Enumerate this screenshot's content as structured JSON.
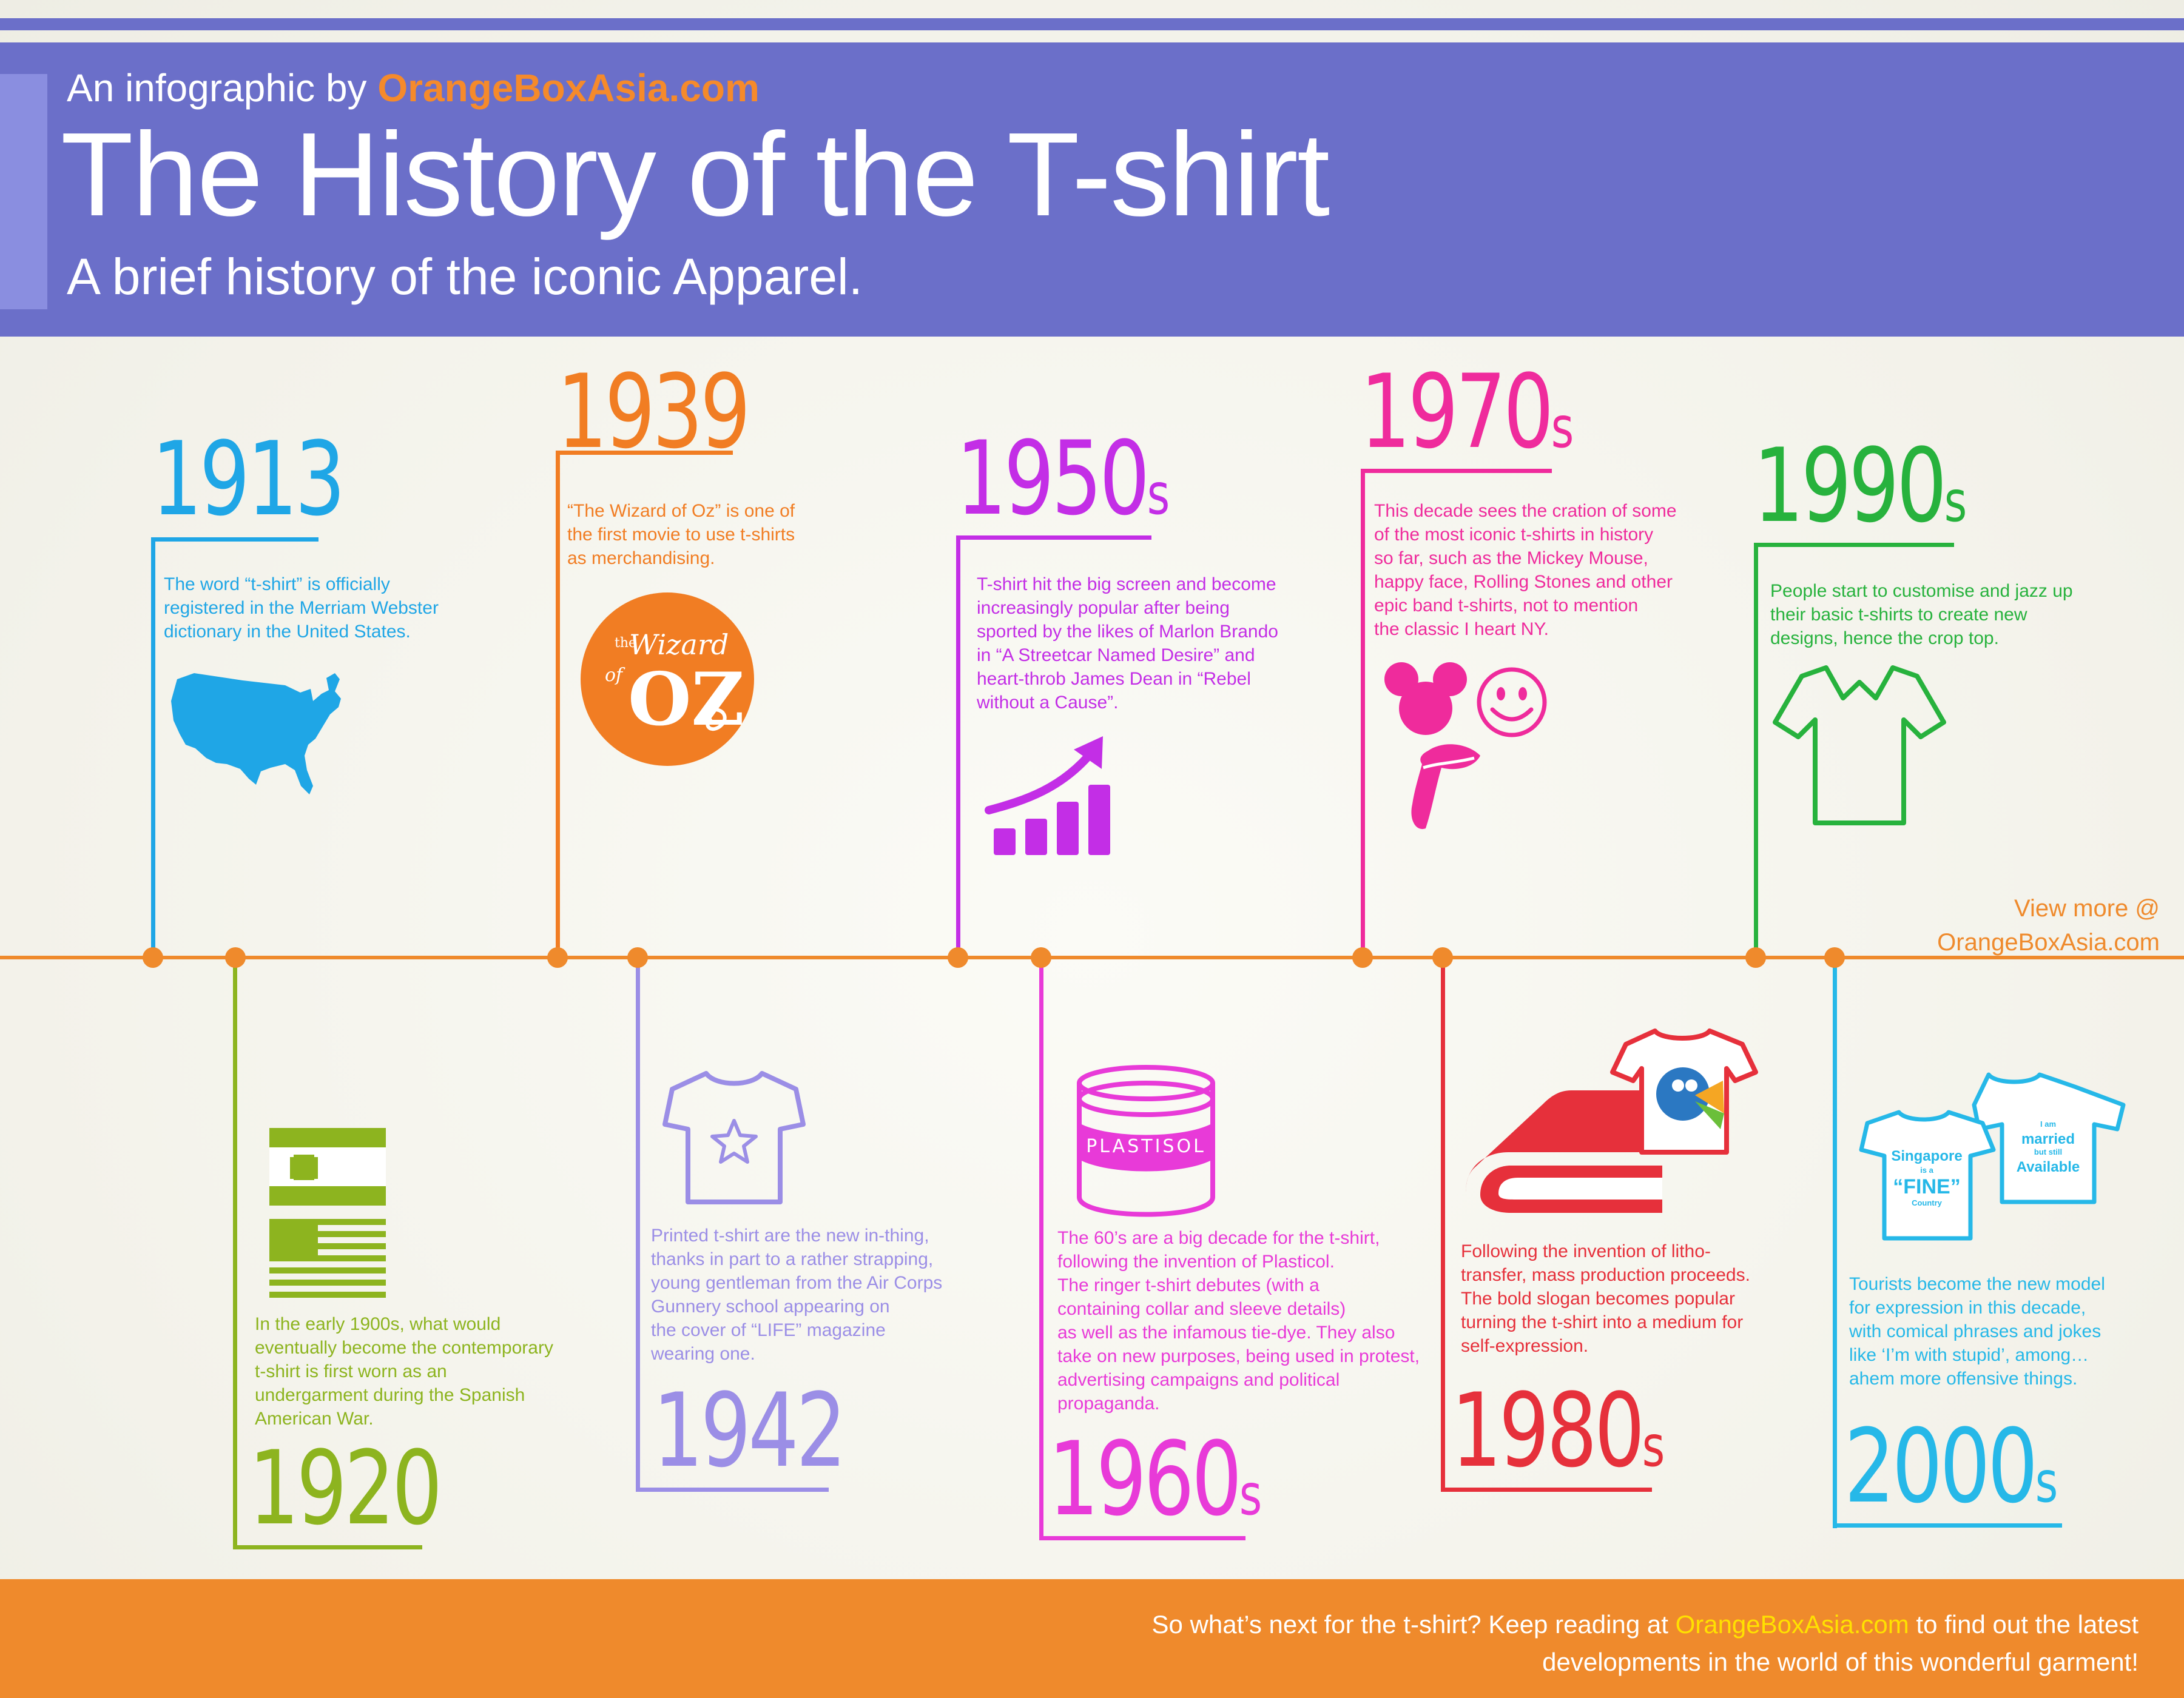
{
  "header": {
    "byline_prefix": "An infographic by ",
    "byline_brand": "OrangeBoxAsia.com",
    "title": "The History of the T-shirt",
    "subtitle": "A brief history of the iconic Apparel."
  },
  "view_more": {
    "line1": "View more @",
    "line2": "OrangeBoxAsia.com"
  },
  "events": [
    {
      "year": "1913",
      "suffix": "",
      "color": "#1fa6e6",
      "icon": "usa-map-icon",
      "lines": [
        "The word “t-shirt” is officially",
        "registered in the Merriam Webster",
        "dictionary in the United States."
      ]
    },
    {
      "year": "1920",
      "suffix": "",
      "color": "#8db41f",
      "icon": "spain-usa-flags-icon",
      "lines": [
        "In the early 1900s, what would",
        "eventually become the contemporary",
        "t-shirt is first worn as an",
        "undergarment during the Spanish",
        "American War."
      ]
    },
    {
      "year": "1939",
      "suffix": "",
      "color": "#f17d23",
      "icon": "wizard-of-oz-logo-icon",
      "lines": [
        "“The Wizard of Oz” is one of",
        "the first movie to use t-shirts",
        "as merchandising."
      ]
    },
    {
      "year": "1942",
      "suffix": "",
      "color": "#9b8ee6",
      "icon": "star-tshirt-icon",
      "lines": [
        "Printed t-shirt are the new in-thing,",
        "thanks in part to a rather strapping,",
        "young gentleman from the Air Corps",
        "Gunnery school appearing on",
        "the cover of “LIFE” magazine",
        "wearing one."
      ]
    },
    {
      "year": "1950",
      "suffix": "s",
      "color": "#c32ee6",
      "icon": "growth-chart-icon",
      "lines": [
        "T-shirt hit the big screen and become",
        "increasingly popular after being",
        "sported by the likes of Marlon Brando",
        "in “A Streetcar Named Desire” and",
        "heart-throb James Dean in “Rebel",
        "without a Cause”."
      ]
    },
    {
      "year": "1960",
      "suffix": "s",
      "color": "#e83ad8",
      "icon": "plastisol-tub-icon",
      "lines": [
        "The 60’s are a big decade for the t-shirt,",
        "following the invention of Plasticol.",
        "The ringer t-shirt debutes (with a",
        "containing collar and sleeve details)",
        "as well as the infamous tie-dye. They also",
        "take on new purposes, being used in protest,",
        "advertising campaigns and political",
        "propaganda."
      ]
    },
    {
      "year": "1970",
      "suffix": "s",
      "color": "#ef2b9c",
      "icon": "iconic-prints-icon",
      "lines": [
        "This decade sees the cration of some",
        "of the most iconic t-shirts in history",
        "so far, such as the Mickey Mouse,",
        "happy face, Rolling Stones and other",
        "epic band t-shirts, not to mention",
        "the classic I heart NY."
      ]
    },
    {
      "year": "1980",
      "suffix": "s",
      "color": "#e6303b",
      "icon": "book-and-tshirt-icon",
      "lines": [
        "Following the invention of litho-",
        "transfer, mass production proceeds.",
        "The bold slogan becomes popular",
        "turning the t-shirt into a medium for",
        "self-expression."
      ]
    },
    {
      "year": "1990",
      "suffix": "s",
      "color": "#27b23d",
      "icon": "crop-top-tshirt-icon",
      "lines": [
        "People start to customise and jazz up",
        "their basic t-shirts to create new",
        "designs, hence the crop top."
      ]
    },
    {
      "year": "2000",
      "suffix": "s",
      "color": "#26b8e8",
      "icon": "tourist-tshirts-icon",
      "lines": [
        "Tourists become the new model",
        "for expression in this decade,",
        "with comical phrases and jokes",
        "like ‘I’m with stupid’, among…",
        "ahem more offensive things."
      ]
    }
  ],
  "tshirt_slogans": {
    "left_l1": "Singapore",
    "left_l2": "is a",
    "left_l3": "“FINE”",
    "left_l4": "Country",
    "right_l1": "I am",
    "right_l2": "married",
    "right_l3": "but still",
    "right_l4": "Available"
  },
  "plastisol_label": "PLASTISOL",
  "oz_logo": {
    "top": "the",
    "mid": "Wizard",
    "of": "of",
    "big": "OZ"
  },
  "footer": {
    "prefix": "So what’s next for the t-shirt? Keep reading at ",
    "brand": "OrangeBoxAsia.com",
    "suffix": " to find out the latest",
    "line2": "developments in the world of this wonderful garment!"
  }
}
